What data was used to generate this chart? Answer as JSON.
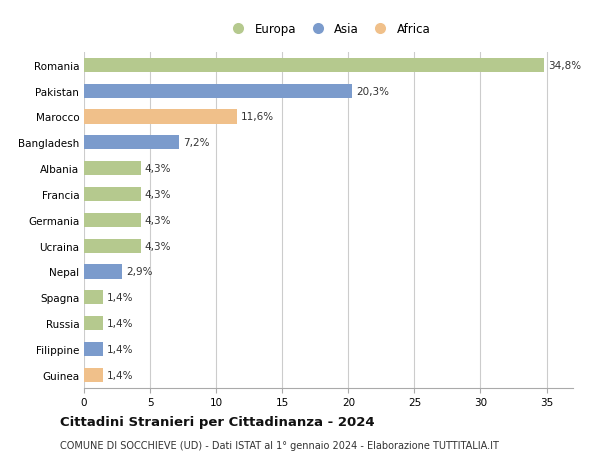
{
  "categories": [
    "Romania",
    "Pakistan",
    "Marocco",
    "Bangladesh",
    "Albania",
    "Francia",
    "Germania",
    "Ucraina",
    "Nepal",
    "Spagna",
    "Russia",
    "Filippine",
    "Guinea"
  ],
  "values": [
    34.8,
    20.3,
    11.6,
    7.2,
    4.3,
    4.3,
    4.3,
    4.3,
    2.9,
    1.4,
    1.4,
    1.4,
    1.4
  ],
  "labels": [
    "34,8%",
    "20,3%",
    "11,6%",
    "7,2%",
    "4,3%",
    "4,3%",
    "4,3%",
    "4,3%",
    "2,9%",
    "1,4%",
    "1,4%",
    "1,4%",
    "1,4%"
  ],
  "continents": [
    "Europa",
    "Asia",
    "Africa",
    "Asia",
    "Europa",
    "Europa",
    "Europa",
    "Europa",
    "Asia",
    "Europa",
    "Europa",
    "Asia",
    "Africa"
  ],
  "colors": {
    "Europa": "#b5c98e",
    "Asia": "#7b9bcc",
    "Africa": "#f0c08a"
  },
  "legend_labels": [
    "Europa",
    "Asia",
    "Africa"
  ],
  "xlim": [
    0,
    37
  ],
  "xticks": [
    0,
    5,
    10,
    15,
    20,
    25,
    30,
    35
  ],
  "title_main": "Cittadini Stranieri per Cittadinanza - 2024",
  "title_sub": "COMUNE DI SOCCHIEVE (UD) - Dati ISTAT al 1° gennaio 2024 - Elaborazione TUTTITALIA.IT",
  "bg_color": "#ffffff",
  "grid_color": "#cccccc",
  "bar_height": 0.55,
  "label_fontsize": 7.5,
  "tick_fontsize": 7.5,
  "title_fontsize": 9.5,
  "subtitle_fontsize": 7.0
}
